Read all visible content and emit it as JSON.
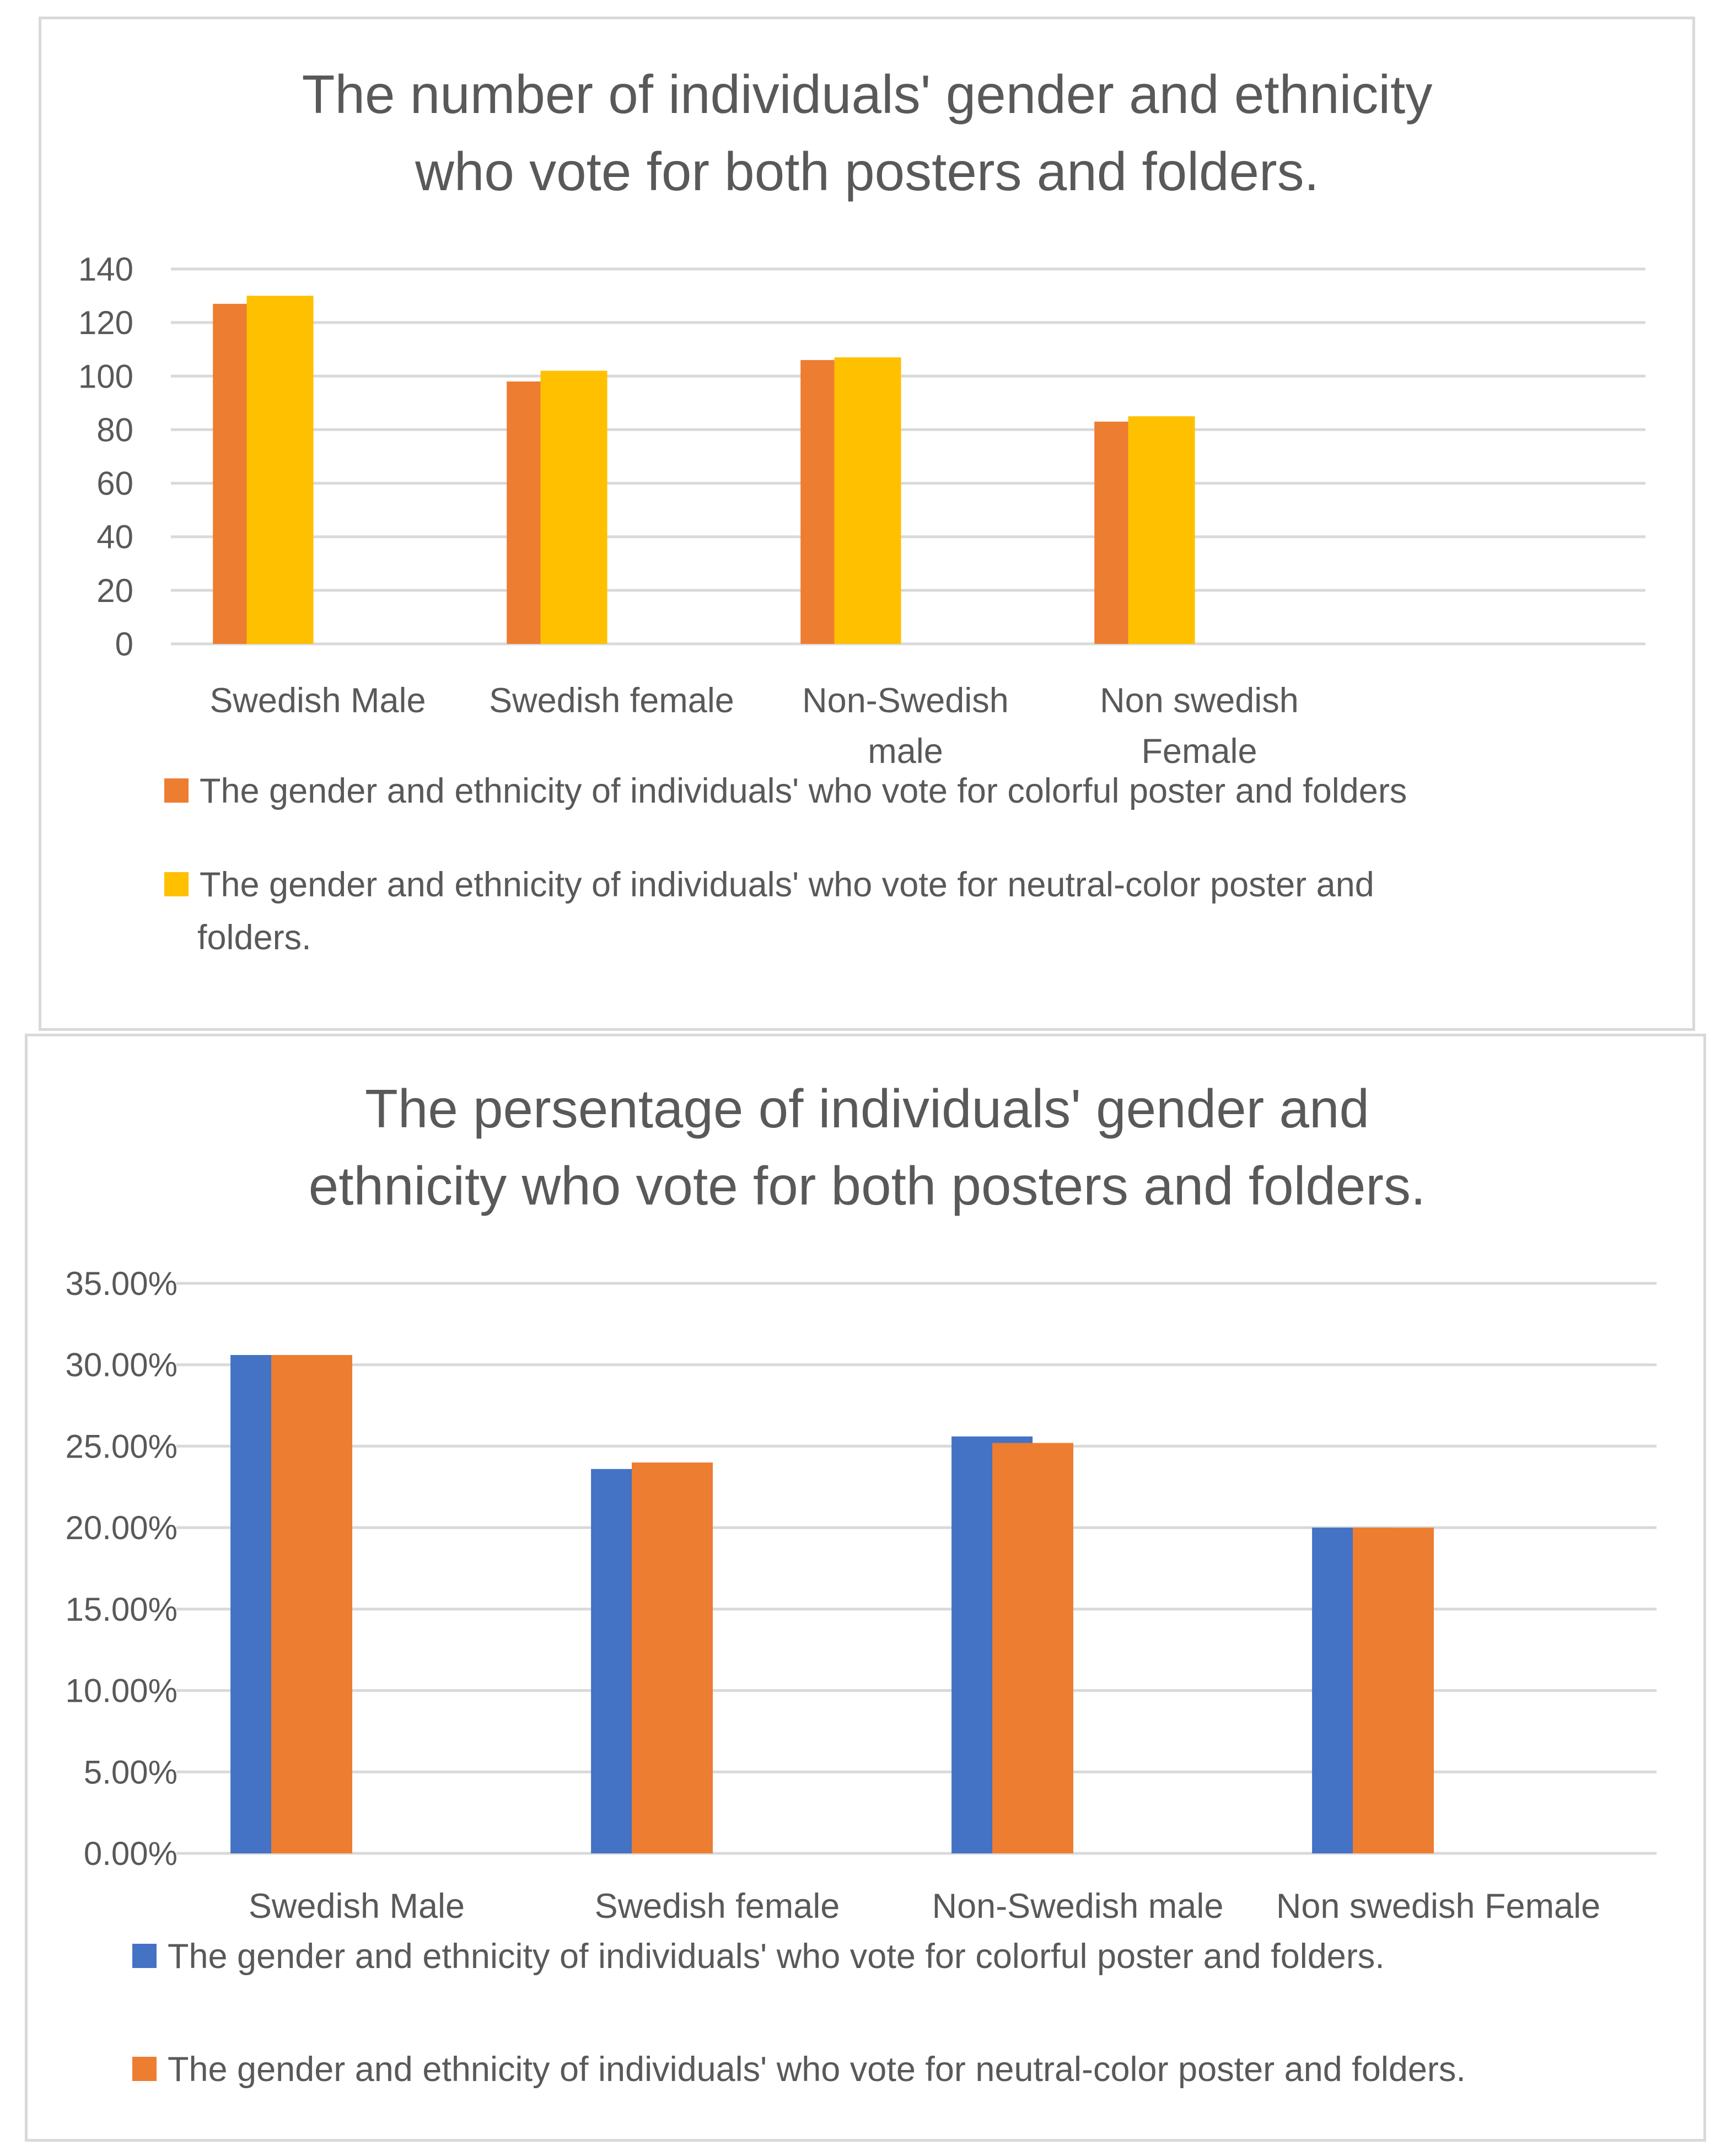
{
  "chart_data": [
    {
      "type": "bar",
      "title": [
        "The number of individuals' gender and ethnicity",
        "who vote for both posters and folders."
      ],
      "categories": [
        [
          "Swedish Male"
        ],
        [
          "Swedish female"
        ],
        [
          "Non-Swedish",
          "male"
        ],
        [
          "Non swedish",
          "Female"
        ]
      ],
      "series": [
        {
          "name": [
            "The gender and ethnicity of individuals' who vote for colorful poster and folders"
          ],
          "color": "#ED7D31",
          "values": [
            127,
            98,
            106,
            83
          ]
        },
        {
          "name": [
            "The gender and ethnicity of individuals' who vote for neutral-color poster and",
            "folders."
          ],
          "color": "#FFC000",
          "values": [
            130,
            102,
            107,
            85
          ]
        }
      ],
      "ylim": [
        0,
        140
      ],
      "yticks": [
        "0",
        "20",
        "40",
        "60",
        "80",
        "100",
        "120",
        "140"
      ],
      "grid": true,
      "legend": "bottom"
    },
    {
      "type": "bar",
      "title": [
        "The persentage of individuals' gender and",
        "ethnicity who vote for both posters and folders."
      ],
      "categories": [
        [
          "Swedish Male"
        ],
        [
          "Swedish female"
        ],
        [
          "Non-Swedish male"
        ],
        [
          "Non swedish Female"
        ]
      ],
      "series": [
        {
          "name": [
            "The gender and ethnicity of individuals' who vote for colorful poster and folders."
          ],
          "color": "#4472C4",
          "values": [
            30.6,
            23.6,
            25.6,
            20.0
          ]
        },
        {
          "name": [
            "The gender and ethnicity of individuals' who vote for neutral-color poster and folders."
          ],
          "color": "#ED7D31",
          "values": [
            30.6,
            24.0,
            25.2,
            20.0
          ]
        }
      ],
      "ylim": [
        0,
        35
      ],
      "yticks": [
        "0.00%",
        "5.00%",
        "10.00%",
        "15.00%",
        "20.00%",
        "25.00%",
        "30.00%",
        "35.00%"
      ],
      "grid": true,
      "legend": "bottom"
    }
  ]
}
